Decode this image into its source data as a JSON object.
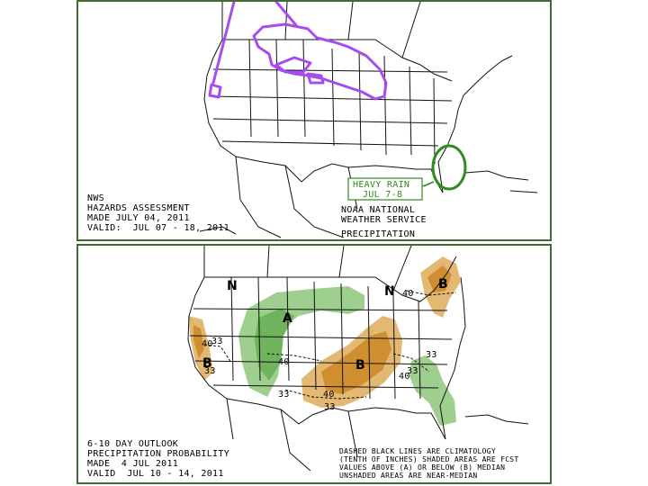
{
  "hazards": {
    "issuer": "NWS",
    "product": "HAZARDS ASSESSMENT",
    "made": "MADE JULY 04, 2011",
    "valid": "VALID:  JUL 07 - 18, 2011",
    "agency_line1": "NOAA NATIONAL",
    "agency_line2": "WEATHER SERVICE",
    "element": "PRECIPITATION",
    "callout_line1": "HEAVY RAIN",
    "callout_line2": "JUL 7-8",
    "colors": {
      "excessive_heat": "#a64cf0",
      "heavy_rain": "#2e8b1e"
    }
  },
  "outlook": {
    "title_line1": "6-10 DAY OUTLOOK",
    "title_line2": "PRECIPITATION PROBABILITY",
    "made": "MADE  4 JUL 2011",
    "valid": "VALID  JUL 10 - 14, 2011",
    "legend_line1": "DASHED BLACK LINES ARE CLIMATOLOGY",
    "legend_line2": "(TENTH OF INCHES) SHADED AREAS ARE FCST",
    "legend_line3": "VALUES ABOVE (A) OR BELOW (B) MEDIAN",
    "legend_line4": "UNSHADED AREAS ARE NEAR-MEDIAN",
    "region_labels": {
      "normal": "N",
      "above": "A",
      "below": "B"
    },
    "contour_labels": [
      "33",
      "40",
      "33",
      "40",
      "33",
      "40",
      "33",
      "40",
      "33",
      "40",
      "33"
    ],
    "colors": {
      "above": "#9fcf8e",
      "above_dark": "#6fb35c",
      "below": "#e3b873",
      "below_dark": "#cf8f30"
    }
  }
}
